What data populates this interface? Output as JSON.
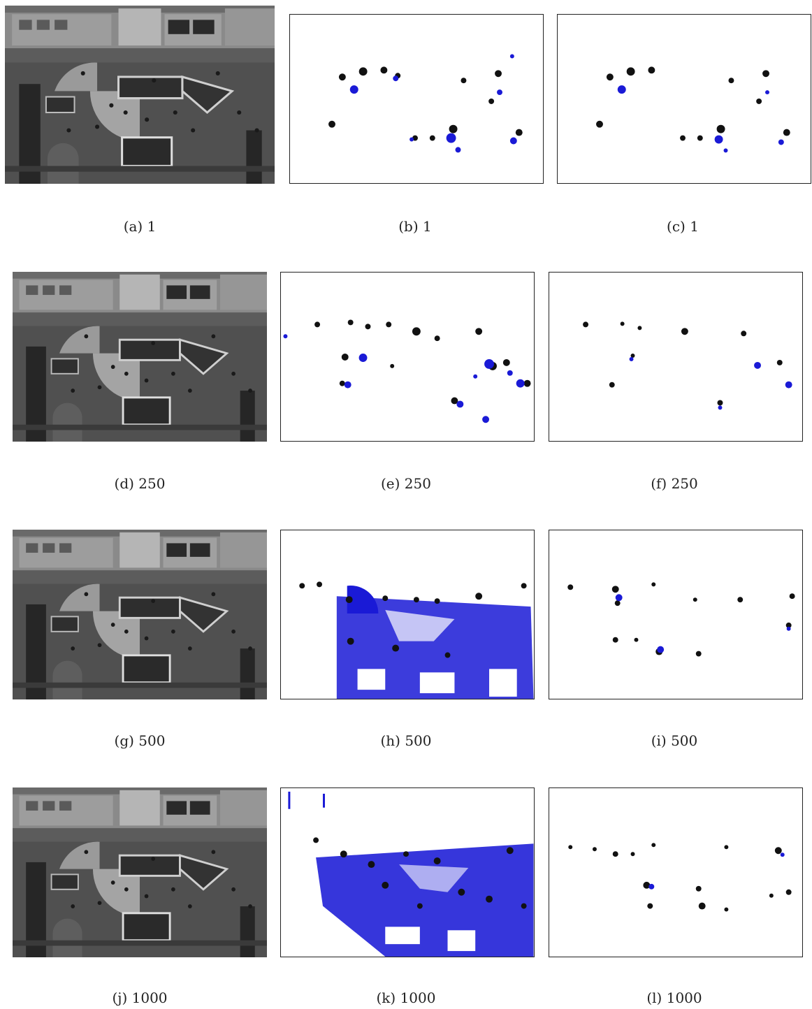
{
  "figure": {
    "rows": [
      {
        "frame": "1",
        "captions": [
          "(a) 1",
          "(b) 1",
          "(c) 1"
        ]
      },
      {
        "frame": "250",
        "captions": [
          "(d) 250",
          "(e) 250",
          "(f) 250"
        ]
      },
      {
        "frame": "500",
        "captions": [
          "(g) 500",
          "(h) 500",
          "(i) 500"
        ]
      },
      {
        "frame": "1000",
        "captions": [
          "(j) 1000",
          "(k) 1000",
          "(l) 1000"
        ]
      }
    ],
    "colors": {
      "foreground": "#111111",
      "shadow": "#1a1ad6",
      "background": "#ffffff"
    }
  }
}
